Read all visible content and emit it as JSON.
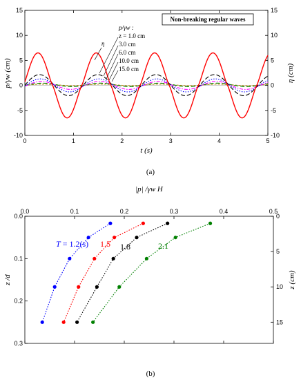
{
  "chart_data": [
    {
      "type": "line",
      "panel_label": "(a)",
      "title_box": "Non-breaking regular waves",
      "xlabel": "t (s)",
      "ylabel_left": "p/γw (cm)",
      "ylabel_right": "η (cm)",
      "xlim": [
        0,
        5
      ],
      "ylim": [
        -10,
        15
      ],
      "x_ticks": [
        "0",
        "1",
        "2",
        "3",
        "4",
        "5"
      ],
      "y_ticks_left": [
        "-10",
        "-5",
        "0",
        "5",
        "10",
        "15"
      ],
      "y_ticks_right": [
        "-10",
        "-5",
        "0",
        "5",
        "10",
        "15"
      ],
      "legend_heading": "p/γw :",
      "eta_label": "η",
      "period_s": 1.2,
      "series": [
        {
          "name": "η",
          "color": "#ff0000",
          "style": "solid",
          "amplitude": 6.5,
          "offset": 0,
          "phase_t0": 0.27,
          "crest_power": 1.2
        },
        {
          "name": "z = 1.0 cm",
          "color": "#000000",
          "style": "dash",
          "amplitude": 2.1,
          "offset": 0.05,
          "phase_t0": 0.3,
          "crest_power": 1
        },
        {
          "name": "3.0 cm",
          "color": "#0000ff",
          "style": "dot",
          "amplitude": 1.3,
          "offset": 0,
          "phase_t0": 0.32,
          "crest_power": 1
        },
        {
          "name": "6.0 cm",
          "color": "#ff00ff",
          "style": "dashdot",
          "amplitude": 0.8,
          "offset": 0,
          "phase_t0": 0.34,
          "crest_power": 1
        },
        {
          "name": "10.0 cm",
          "color": "#008000",
          "style": "dash",
          "amplitude": 0.35,
          "offset": 0.1,
          "phase_t0": 0.36,
          "crest_power": 1
        },
        {
          "name": "15.0 cm",
          "color": "#b8860b",
          "style": "shortdash",
          "amplitude": 0.15,
          "offset": 0.1,
          "phase_t0": 0.38,
          "crest_power": 1
        }
      ]
    },
    {
      "type": "scatter",
      "panel_label": "(b)",
      "xlabel": "|p| /γw H",
      "ylabel_left": "z /d",
      "ylabel_right": "z (cm)",
      "xlim": [
        0,
        0.5
      ],
      "ylim": [
        0,
        0.3
      ],
      "x_ticks": [
        "0.0",
        "0.1",
        "0.2",
        "0.3",
        "0.4",
        "0.5"
      ],
      "y_ticks_left": [
        "0.0",
        "0.1",
        "0.2",
        "0.3"
      ],
      "right_ticks": {
        "labels": [
          "0",
          "5",
          "10",
          "15"
        ],
        "values": [
          0,
          5,
          10,
          15
        ],
        "cm_per_unit": 60
      },
      "series": [
        {
          "name": "T = 1.2(s)",
          "color": "#0000ff",
          "x": [
            0.172,
            0.128,
            0.09,
            0.06,
            0.035
          ],
          "y": [
            0.0167,
            0.05,
            0.1,
            0.1667,
            0.25
          ]
        },
        {
          "name": "1.5",
          "color": "#ff0000",
          "x": [
            0.238,
            0.18,
            0.14,
            0.108,
            0.078
          ],
          "y": [
            0.0167,
            0.05,
            0.1,
            0.1667,
            0.25
          ]
        },
        {
          "name": "1.8",
          "color": "#000000",
          "x": [
            0.287,
            0.225,
            0.178,
            0.145,
            0.105
          ],
          "y": [
            0.0167,
            0.05,
            0.1,
            0.1667,
            0.25
          ]
        },
        {
          "name": "2.1",
          "color": "#008000",
          "x": [
            0.373,
            0.303,
            0.245,
            0.19,
            0.137
          ],
          "y": [
            0.0167,
            0.05,
            0.1,
            0.1667,
            0.25
          ]
        }
      ]
    }
  ]
}
